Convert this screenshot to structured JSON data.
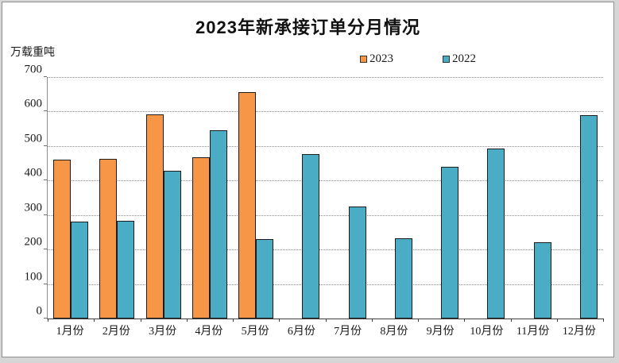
{
  "chart_data": {
    "type": "bar",
    "title": "2023年新承接订单分月情况",
    "ylabel": "万载重吨",
    "xlabel": "",
    "categories": [
      "1月份",
      "2月份",
      "3月份",
      "4月份",
      "5月份",
      "6月份",
      "7月份",
      "8月份",
      "9月份",
      "10月份",
      "11月份",
      "12月份"
    ],
    "series": [
      {
        "name": "2023",
        "color": "#F79646",
        "values": [
          461,
          463,
          592,
          467,
          657,
          null,
          null,
          null,
          null,
          null,
          null,
          null
        ]
      },
      {
        "name": "2022",
        "color": "#4BACC6",
        "values": [
          281,
          283,
          428,
          545,
          230,
          476,
          325,
          232,
          440,
          493,
          221,
          590
        ]
      }
    ],
    "ylim": [
      0,
      700
    ],
    "ytick_interval": 100,
    "grid": "horizontal-dotted",
    "legend_position": "top-right"
  },
  "style": {
    "bar_border_color": "#1c1c1c",
    "gridline_color": "#8f8f8f",
    "axis_color": "#3f3f3f",
    "background": "#ffffff",
    "outer_background": "#d6d6d6"
  }
}
